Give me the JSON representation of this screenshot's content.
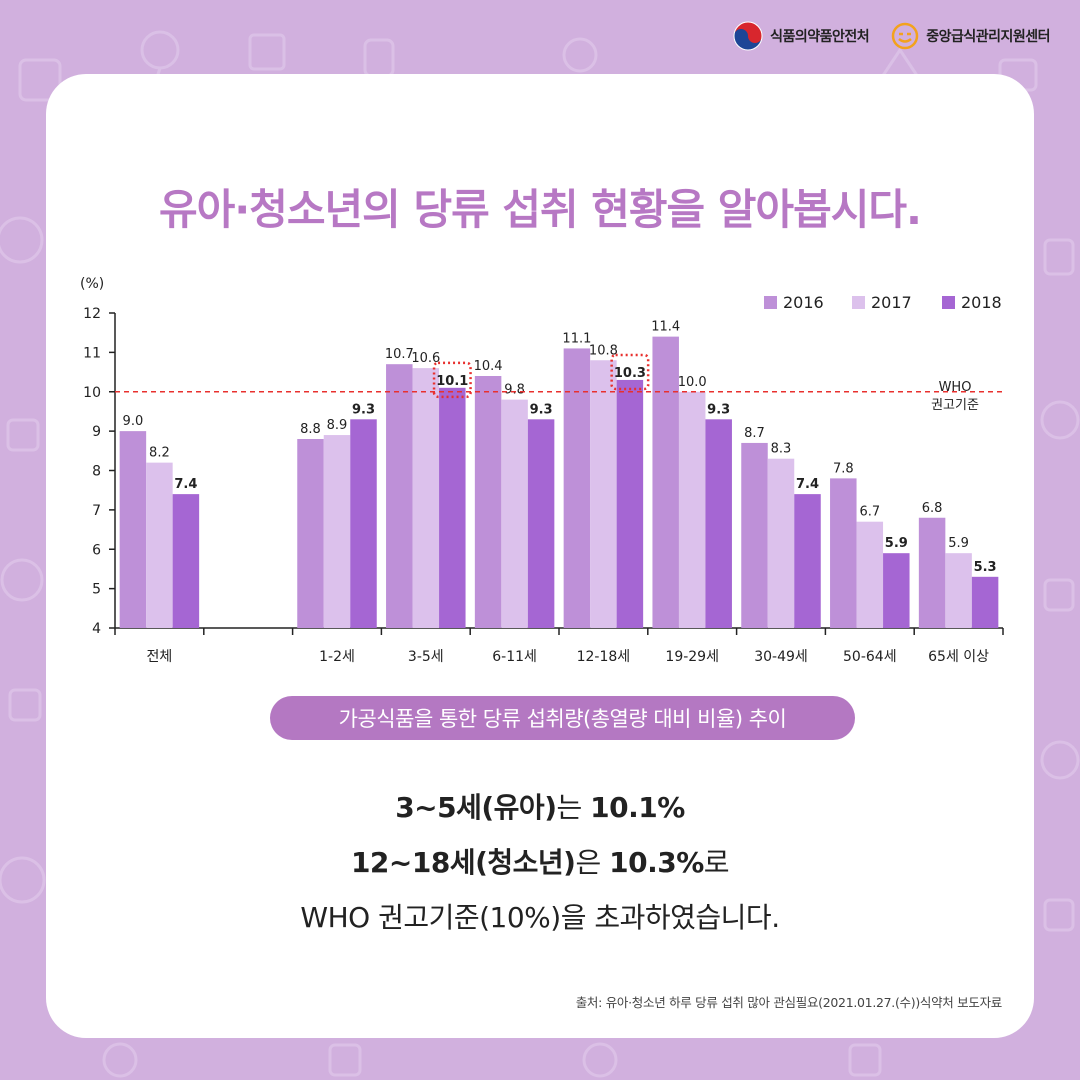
{
  "header": {
    "org1": "식품의약품안전처",
    "org2": "중앙급식관리지원센터"
  },
  "title": "유아·청소년의 당류 섭취 현황을 알아봅시다.",
  "chart_data": {
    "type": "bar",
    "ylabel": "(%)",
    "ylim": [
      4,
      12
    ],
    "yticks": [
      4,
      5,
      6,
      7,
      8,
      9,
      10,
      11,
      12
    ],
    "categories": [
      "전체",
      "",
      "1-2세",
      "3-5세",
      "6-11세",
      "12-18세",
      "19-29세",
      "30-49세",
      "50-64세",
      "65세 이상"
    ],
    "series": [
      {
        "name": "2016",
        "color": "#be90d8",
        "values": [
          9.0,
          null,
          8.8,
          10.7,
          10.4,
          11.1,
          11.4,
          8.7,
          7.8,
          6.8
        ]
      },
      {
        "name": "2017",
        "color": "#dcc1ec",
        "values": [
          8.2,
          null,
          8.9,
          10.6,
          9.8,
          10.8,
          10.0,
          8.3,
          6.7,
          5.9
        ]
      },
      {
        "name": "2018",
        "color": "#a566d3",
        "values": [
          7.4,
          null,
          9.3,
          10.1,
          9.3,
          10.3,
          9.3,
          7.4,
          5.9,
          5.3
        ]
      }
    ],
    "bold_series": "2018",
    "highlighted": [
      {
        "category": "3-5세",
        "series": "2018"
      },
      {
        "category": "12-18세",
        "series": "2018"
      }
    ],
    "reference_line": {
      "value": 10,
      "label_line1": "WHO",
      "label_line2": "권고기준",
      "color": "#e8302e"
    },
    "legend_position": "top-right",
    "grid": false
  },
  "pill_label": "가공식품을 통한 당류 섭취량(총열량 대비 비율) 추이",
  "summary": {
    "l1_b1": "3~5세(유아)",
    "l1_t1": "는 ",
    "l1_b2": "10.1%",
    "l2_b1": "12~18세(청소년)",
    "l2_t1": "은 ",
    "l2_b2": "10.3%",
    "l2_t2": "로",
    "l3": "WHO 권고기준(10%)을 초과하였습니다."
  },
  "source": "출처: 유아·청소년 하루 당류 섭취 많아 관심필요(2021.01.27.(수))식약처 보도자료"
}
